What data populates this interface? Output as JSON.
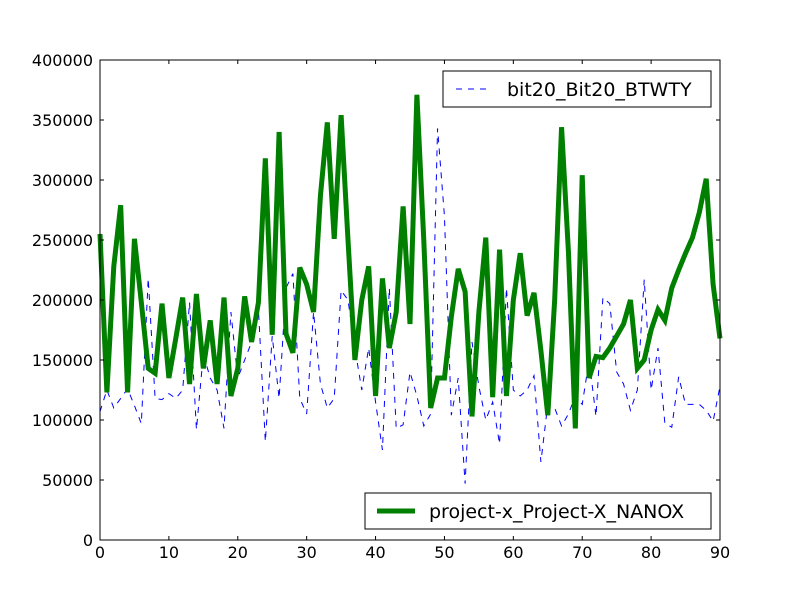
{
  "chart_data": {
    "type": "line",
    "title": "",
    "xlabel": "",
    "ylabel": "",
    "xlim": [
      0,
      90
    ],
    "ylim": [
      0,
      400000
    ],
    "xticks": [
      0,
      10,
      20,
      30,
      40,
      50,
      60,
      70,
      80,
      90
    ],
    "yticks": [
      0,
      50000,
      100000,
      150000,
      200000,
      250000,
      300000,
      350000,
      400000
    ],
    "grid": false,
    "series": [
      {
        "name": "bit20_Bit20_BTWTY",
        "color": "#0000ff",
        "line_style": "dashed",
        "x": [
          0,
          1,
          2,
          3,
          4,
          5,
          6,
          7,
          8,
          9,
          10,
          11,
          12,
          13,
          14,
          15,
          16,
          17,
          18,
          19,
          20,
          21,
          22,
          23,
          24,
          25,
          26,
          27,
          28,
          29,
          30,
          31,
          32,
          33,
          34,
          35,
          36,
          37,
          38,
          39,
          40,
          41,
          42,
          43,
          44,
          45,
          46,
          47,
          48,
          49,
          50,
          51,
          52,
          53,
          54,
          55,
          56,
          57,
          58,
          59,
          60,
          61,
          62,
          63,
          64,
          65,
          66,
          67,
          68,
          69,
          70,
          71,
          72,
          73,
          74,
          75,
          76,
          77,
          78,
          79,
          80,
          81,
          82,
          83,
          84,
          85,
          86,
          87,
          88,
          89,
          90
        ],
        "values": [
          107000,
          125000,
          110000,
          118000,
          126000,
          112000,
          97000,
          218000,
          118000,
          117000,
          122000,
          118000,
          125000,
          198000,
          92000,
          155000,
          135000,
          125000,
          93000,
          190000,
          135000,
          150000,
          165000,
          192000,
          82000,
          170000,
          118000,
          210000,
          222000,
          118000,
          105000,
          190000,
          130000,
          110000,
          118000,
          208000,
          200000,
          160000,
          125000,
          160000,
          115000,
          75000,
          210000,
          93000,
          96000,
          140000,
          120000,
          95000,
          105000,
          343000,
          270000,
          104000,
          135000,
          47000,
          165000,
          128000,
          100000,
          115000,
          80000,
          210000,
          125000,
          120000,
          125000,
          137000,
          65000,
          113000,
          110000,
          95000,
          105000,
          120000,
          113000,
          150000,
          103000,
          202000,
          197000,
          140000,
          130000,
          108000,
          125000,
          217000,
          125000,
          160000,
          97000,
          94000,
          136000,
          113000,
          113000,
          113000,
          108000,
          99000,
          128000
        ]
      },
      {
        "name": "project-x_Project-X_NANOX",
        "color": "#007f00",
        "line_style": "solid",
        "x": [
          0,
          1,
          2,
          3,
          4,
          5,
          6,
          7,
          8,
          9,
          10,
          11,
          12,
          13,
          14,
          15,
          16,
          17,
          18,
          19,
          20,
          21,
          22,
          23,
          24,
          25,
          26,
          27,
          28,
          29,
          30,
          31,
          32,
          33,
          34,
          35,
          36,
          37,
          38,
          39,
          40,
          41,
          42,
          43,
          44,
          45,
          46,
          47,
          48,
          49,
          50,
          51,
          52,
          53,
          54,
          55,
          56,
          57,
          58,
          59,
          60,
          61,
          62,
          63,
          64,
          65,
          66,
          67,
          68,
          69,
          70,
          71,
          72,
          73,
          74,
          75,
          76,
          77,
          78,
          79,
          80,
          81,
          82,
          83,
          84,
          85,
          86,
          87,
          88,
          89,
          90
        ],
        "values": [
          255000,
          123000,
          228000,
          279000,
          123000,
          251000,
          198000,
          143000,
          139000,
          197000,
          135000,
          168000,
          202000,
          130000,
          205000,
          143000,
          183000,
          130000,
          202000,
          120000,
          143000,
          203000,
          165000,
          198000,
          318000,
          171000,
          340000,
          172000,
          156000,
          227000,
          213000,
          190000,
          287000,
          348000,
          251000,
          354000,
          250000,
          150000,
          200000,
          228000,
          120000,
          218000,
          160000,
          190000,
          278000,
          180000,
          371000,
          250000,
          110000,
          135000,
          135000,
          186000,
          226000,
          207000,
          103000,
          190000,
          252000,
          119000,
          242000,
          120000,
          200000,
          239000,
          187000,
          206000,
          158000,
          104000,
          200000,
          344000,
          240000,
          93000,
          304000,
          135000,
          153000,
          152000,
          160000,
          170000,
          180000,
          200000,
          143000,
          150000,
          175000,
          192000,
          183000,
          210000,
          225000,
          239000,
          252000,
          273000,
          301000,
          213000,
          168000
        ]
      }
    ]
  }
}
